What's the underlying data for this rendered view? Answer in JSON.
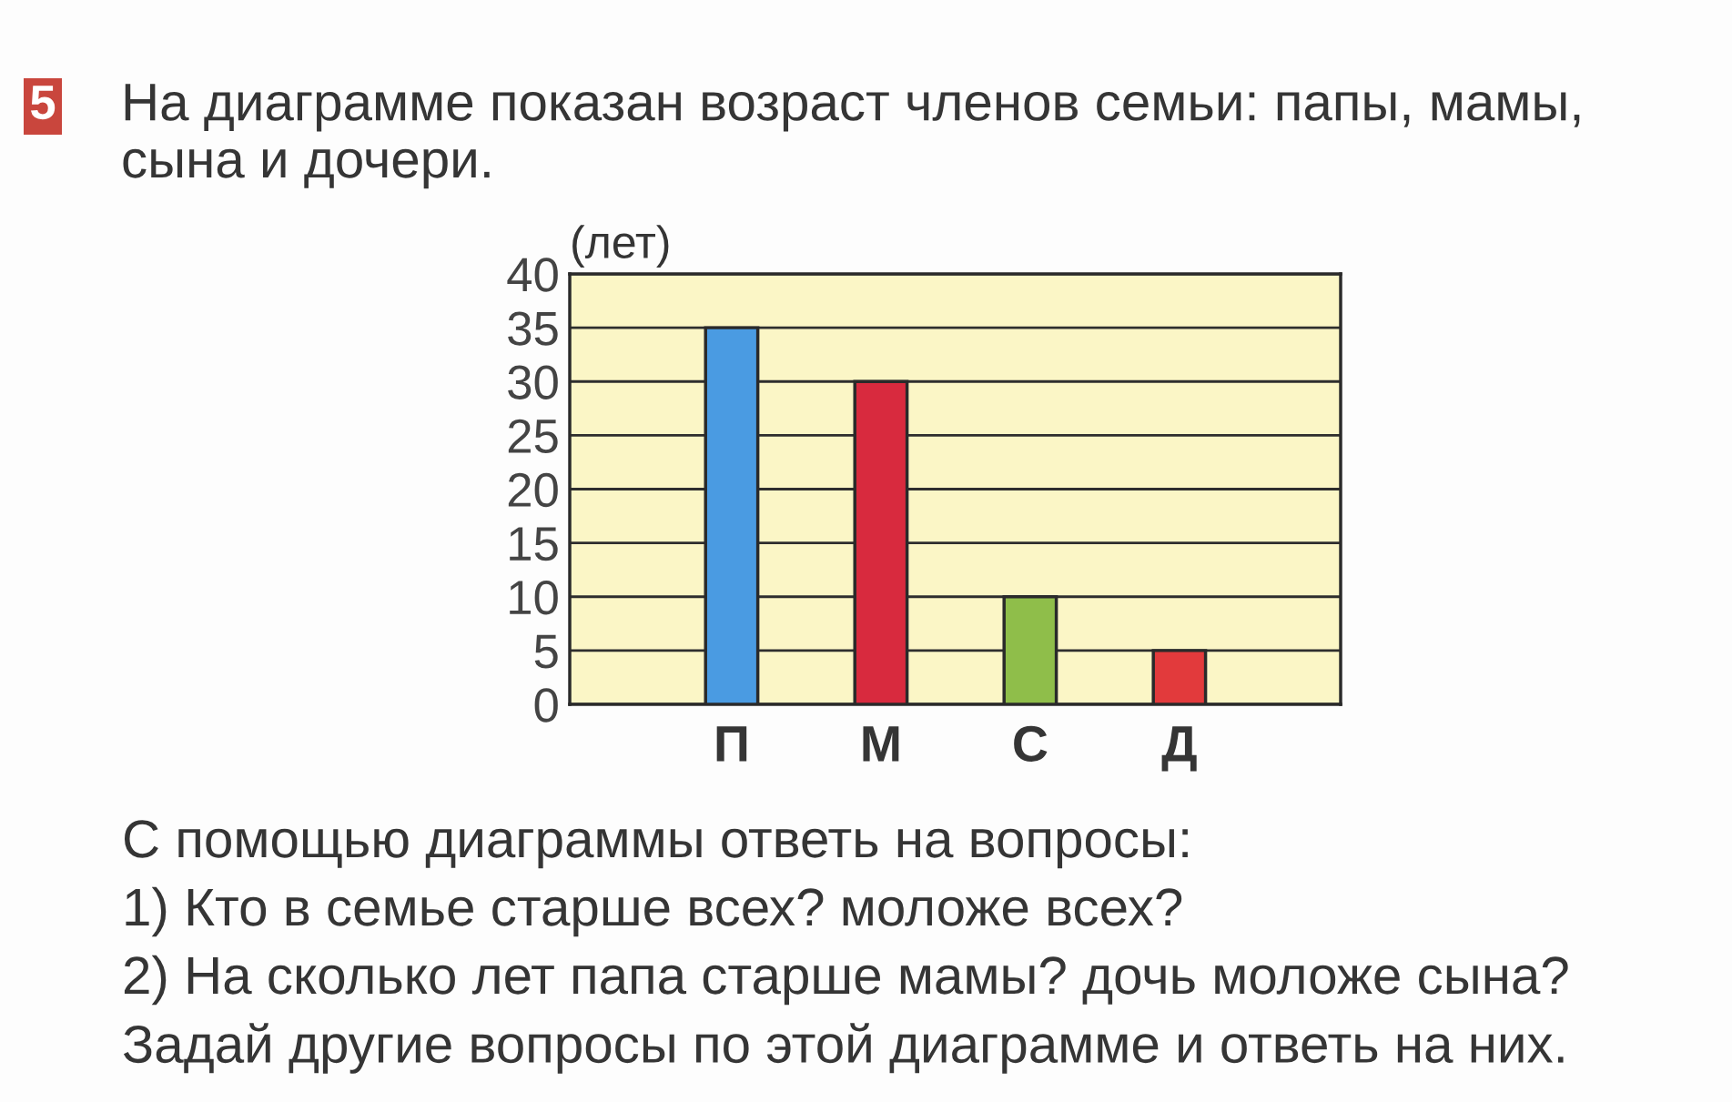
{
  "chart_data": {
    "type": "bar",
    "title": "На диаграмме показан возраст членов семьи: папы, мамы, сына и дочери.",
    "ylabel": "(лет)",
    "categories": [
      "П",
      "М",
      "С",
      "Д"
    ],
    "values": [
      35,
      30,
      10,
      5
    ],
    "colors": [
      "#4a9be2",
      "#d82a3e",
      "#8fbe4a",
      "#e23a3c"
    ],
    "ylim": [
      0,
      40
    ],
    "yticks": [
      0,
      5,
      10,
      15,
      20,
      25,
      30,
      35,
      40
    ],
    "grid": "y",
    "annotations": [
      "5",
      "С помощью диаграммы ответь на вопросы:",
      "1) Кто в семье старше всех? моложе всех?",
      "2) На сколько лет папа старше мамы? дочь моложе сына?",
      "Задай другие вопросы по этой диаграмме и ответь на них."
    ]
  }
}
